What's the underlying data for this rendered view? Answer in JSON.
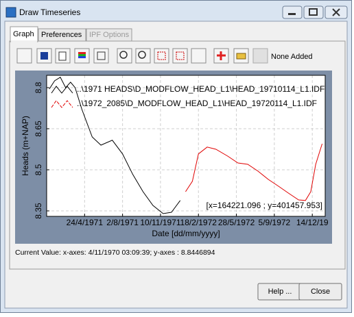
{
  "window": {
    "title": "Draw Timeseries"
  },
  "tabs": [
    "Graph",
    "Preferences",
    "IPF Options"
  ],
  "toolbar": {
    "status": "None Added"
  },
  "chart_data": {
    "type": "line",
    "y_label": "Heads (m+NAP)",
    "x_label": "Date [dd/mm/yyyy]",
    "annotation": "[x=164221.096 ; y=401457.953]",
    "grid": true,
    "xlim": [
      378,
      1112
    ],
    "xticks": [
      {
        "value": 478,
        "label": "24/4/1971"
      },
      {
        "value": 578,
        "label": "2/8/1971"
      },
      {
        "value": 678,
        "label": "10/11/1971"
      },
      {
        "value": 778,
        "label": "18/2/1972"
      },
      {
        "value": 878,
        "label": "28/5/1972"
      },
      {
        "value": 978,
        "label": "5/9/1972"
      },
      {
        "value": 1078,
        "label": "14/12/19"
      }
    ],
    "ylim": [
      8.33,
      8.845
    ],
    "yticks": [
      8.35,
      8.5,
      8.65,
      8.8
    ],
    "series": [
      {
        "name": "..\\1971 HEADS\\D_MODFLOW_HEAD_L1\\HEAD_19710114_L1.IDF",
        "color": "#000000",
        "x": [
          385,
          399,
          414,
          428,
          441,
          453,
          471,
          498,
          521,
          551,
          578,
          605,
          632,
          658,
          685,
          707,
          730
        ],
        "values": [
          8.795,
          8.825,
          8.838,
          8.8,
          8.82,
          8.8,
          8.72,
          8.62,
          8.59,
          8.608,
          8.558,
          8.483,
          8.42,
          8.37,
          8.34,
          8.345,
          8.388
        ]
      },
      {
        "name": "..\\1972_2085\\D_MODFLOW_HEAD_L1\\HEAD_19720114_L1.IDF",
        "color": "#e00000",
        "x": [
          744,
          762,
          778,
          801,
          824,
          855,
          882,
          908,
          935,
          962,
          989,
          1015,
          1042,
          1060,
          1074,
          1087,
          1104
        ],
        "values": [
          8.42,
          8.458,
          8.558,
          8.583,
          8.575,
          8.55,
          8.525,
          8.52,
          8.495,
          8.465,
          8.44,
          8.415,
          8.39,
          8.388,
          8.42,
          8.52,
          8.595
        ]
      }
    ]
  },
  "status_bar": "Current Value: x-axes: 4/11/1970 03:09:39; y-axes : 8.8446894",
  "buttons": [
    "Help ...",
    "Close"
  ]
}
